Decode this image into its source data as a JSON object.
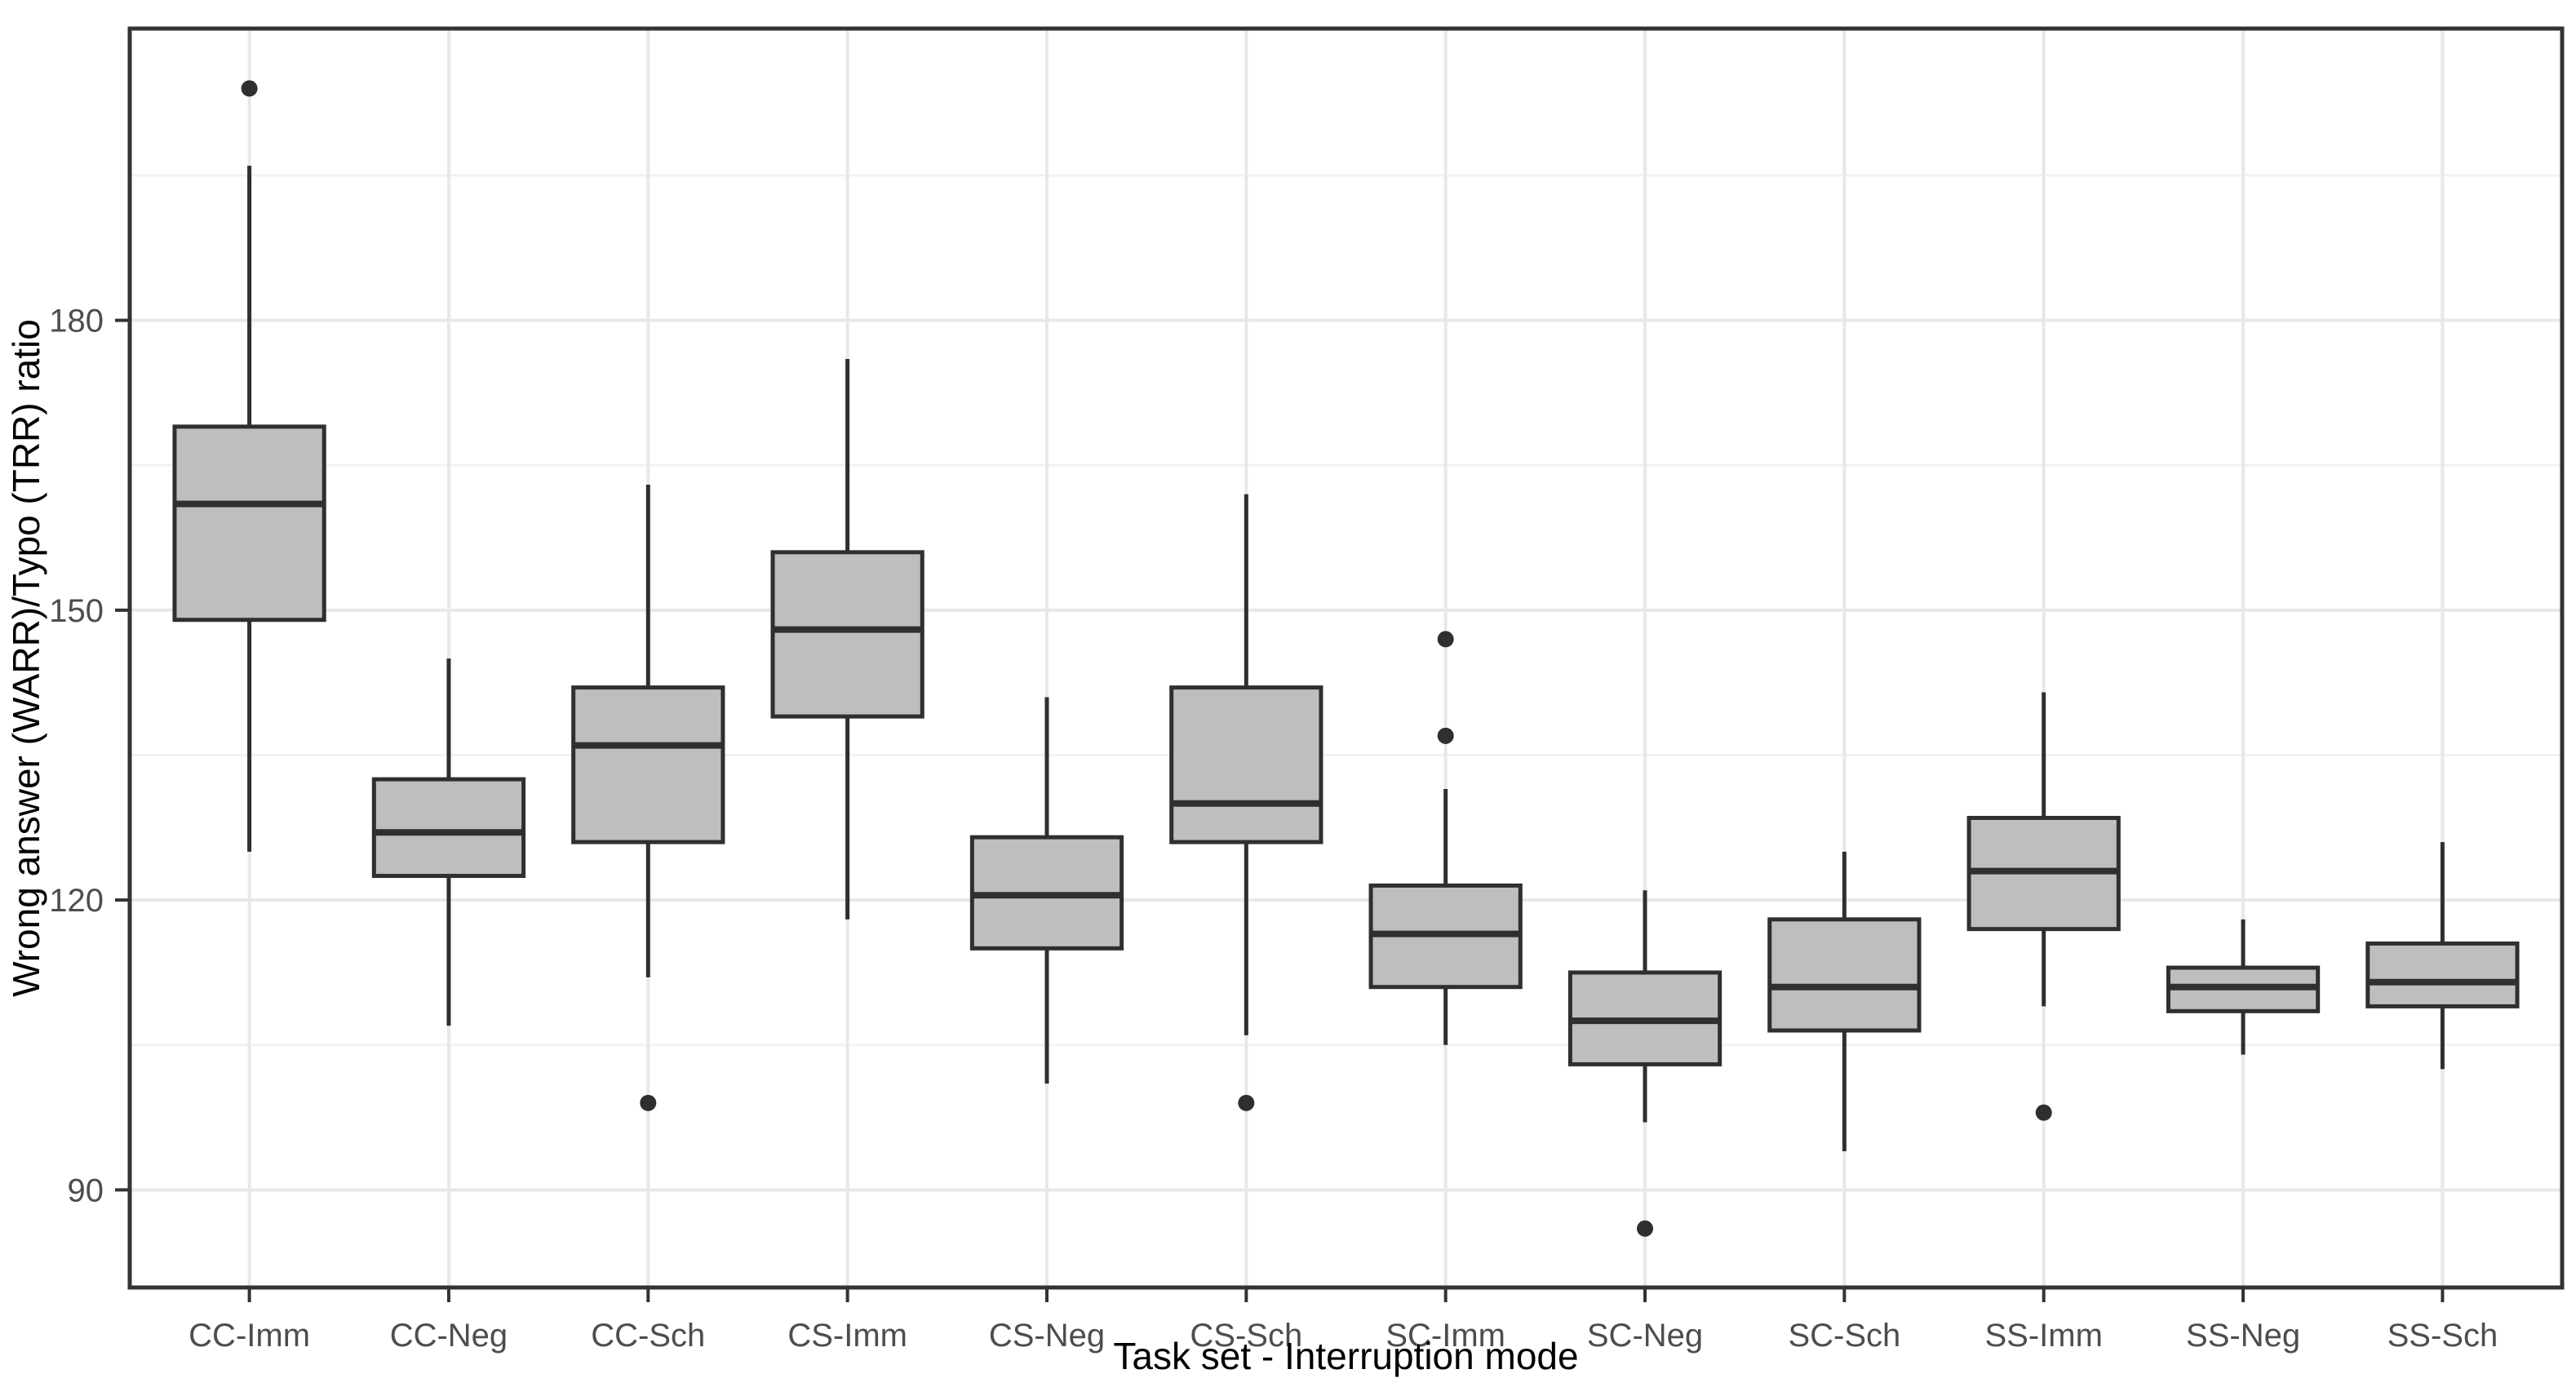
{
  "chart_data": {
    "type": "boxplot",
    "title": "",
    "xlabel": "Task set - Interruption mode",
    "ylabel": "Wrong answer (WARR)/Typo (TRR) ratio",
    "categories": [
      "CC-Imm",
      "CC-Neg",
      "CC-Sch",
      "CS-Imm",
      "CS-Neg",
      "CS-Sch",
      "SC-Imm",
      "SC-Neg",
      "SC-Sch",
      "SS-Imm",
      "SS-Neg",
      "SS-Sch"
    ],
    "y_axis": {
      "ticks": [
        90,
        120,
        150,
        180
      ],
      "minor_gridlines": [
        105,
        135,
        165,
        195
      ],
      "range": [
        79.9,
        210.2
      ]
    },
    "grid": {
      "major_horizontal": true,
      "minor_horizontal": true,
      "vertical_at_categories": true
    },
    "legend": "none",
    "boxes": [
      {
        "category": "CC-Imm",
        "whisker_low": 125,
        "q1": 149,
        "median": 161,
        "q3": 169,
        "whisker_high": 196,
        "outliers": [
          204
        ]
      },
      {
        "category": "CC-Neg",
        "whisker_low": 107,
        "q1": 122.5,
        "median": 127,
        "q3": 132.5,
        "whisker_high": 145,
        "outliers": []
      },
      {
        "category": "CC-Sch",
        "whisker_low": 112,
        "q1": 126,
        "median": 136,
        "q3": 142,
        "whisker_high": 163,
        "outliers": [
          99
        ]
      },
      {
        "category": "CS-Imm",
        "whisker_low": 118,
        "q1": 139,
        "median": 148,
        "q3": 156,
        "whisker_high": 176,
        "outliers": []
      },
      {
        "category": "CS-Neg",
        "whisker_low": 101,
        "q1": 115,
        "median": 120.5,
        "q3": 126.5,
        "whisker_high": 141,
        "outliers": []
      },
      {
        "category": "CS-Sch",
        "whisker_low": 106,
        "q1": 126,
        "median": 130,
        "q3": 142,
        "whisker_high": 162,
        "outliers": [
          99
        ]
      },
      {
        "category": "SC-Imm",
        "whisker_low": 105,
        "q1": 111,
        "median": 116.5,
        "q3": 121.5,
        "whisker_high": 131.5,
        "outliers": [
          137,
          147
        ]
      },
      {
        "category": "SC-Neg",
        "whisker_low": 97,
        "q1": 103,
        "median": 107.5,
        "q3": 112.5,
        "whisker_high": 121,
        "outliers": [
          86
        ]
      },
      {
        "category": "SC-Sch",
        "whisker_low": 94,
        "q1": 106.5,
        "median": 111,
        "q3": 118,
        "whisker_high": 125,
        "outliers": []
      },
      {
        "category": "SS-Imm",
        "whisker_low": 109,
        "q1": 117,
        "median": 123,
        "q3": 128.5,
        "whisker_high": 141.5,
        "outliers": [
          98
        ]
      },
      {
        "category": "SS-Neg",
        "whisker_low": 104,
        "q1": 108.5,
        "median": 111,
        "q3": 113,
        "whisker_high": 118,
        "outliers": []
      },
      {
        "category": "SS-Sch",
        "whisker_low": 102.5,
        "q1": 109,
        "median": 111.5,
        "q3": 115.5,
        "whisker_high": 126,
        "outliers": []
      }
    ],
    "colors": {
      "box_fill": "#BEBEBE",
      "box_line": "#2F2F2F",
      "median_line": "#2F2F2F",
      "outlier": "#2F2F2F",
      "grid_major": "#E8E8E8",
      "grid_minor": "#F2F2F2",
      "panel_border": "#333333",
      "tick_mark": "#333333",
      "tick_label": "#4D4D4D",
      "axis_title": "#000000",
      "background": "#FFFFFF"
    }
  }
}
